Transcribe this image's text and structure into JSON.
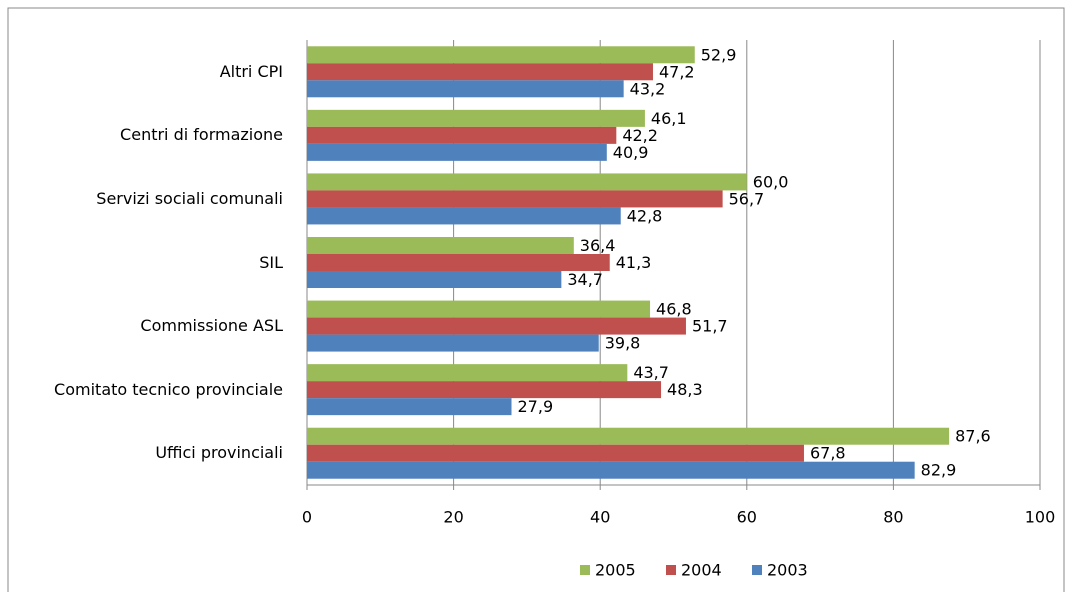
{
  "chart_data": {
    "type": "hbar",
    "categories": [
      "Altri CPI",
      "Centri di formazione",
      "Servizi sociali comunali",
      "SIL",
      "Commissione ASL",
      "Comitato tecnico provinciale",
      "Uffici provinciali"
    ],
    "series": [
      {
        "name": "2005",
        "color": "#9bbb59",
        "values": [
          52.9,
          46.1,
          60.0,
          36.4,
          46.8,
          43.7,
          87.6
        ],
        "value_labels": [
          "52,9",
          "46,1",
          "60,0",
          "36,4",
          "46,8",
          "43,7",
          "87,6"
        ]
      },
      {
        "name": "2004",
        "color": "#c0504d",
        "values": [
          47.2,
          42.2,
          56.7,
          41.3,
          51.7,
          48.3,
          67.8
        ],
        "value_labels": [
          "47,2",
          "42,2",
          "56,7",
          "41,3",
          "51,7",
          "48,3",
          "67,8"
        ]
      },
      {
        "name": "2003",
        "color": "#4f81bd",
        "values": [
          43.2,
          40.9,
          42.8,
          34.7,
          39.8,
          27.9,
          82.9
        ],
        "value_labels": [
          "43,2",
          "40,9",
          "42,8",
          "34,7",
          "39,8",
          "27,9",
          "82,9"
        ]
      }
    ],
    "xlim": [
      0,
      100
    ],
    "xticks": [
      0,
      20,
      40,
      60,
      80,
      100
    ],
    "grid": true,
    "legend": "bottom"
  }
}
